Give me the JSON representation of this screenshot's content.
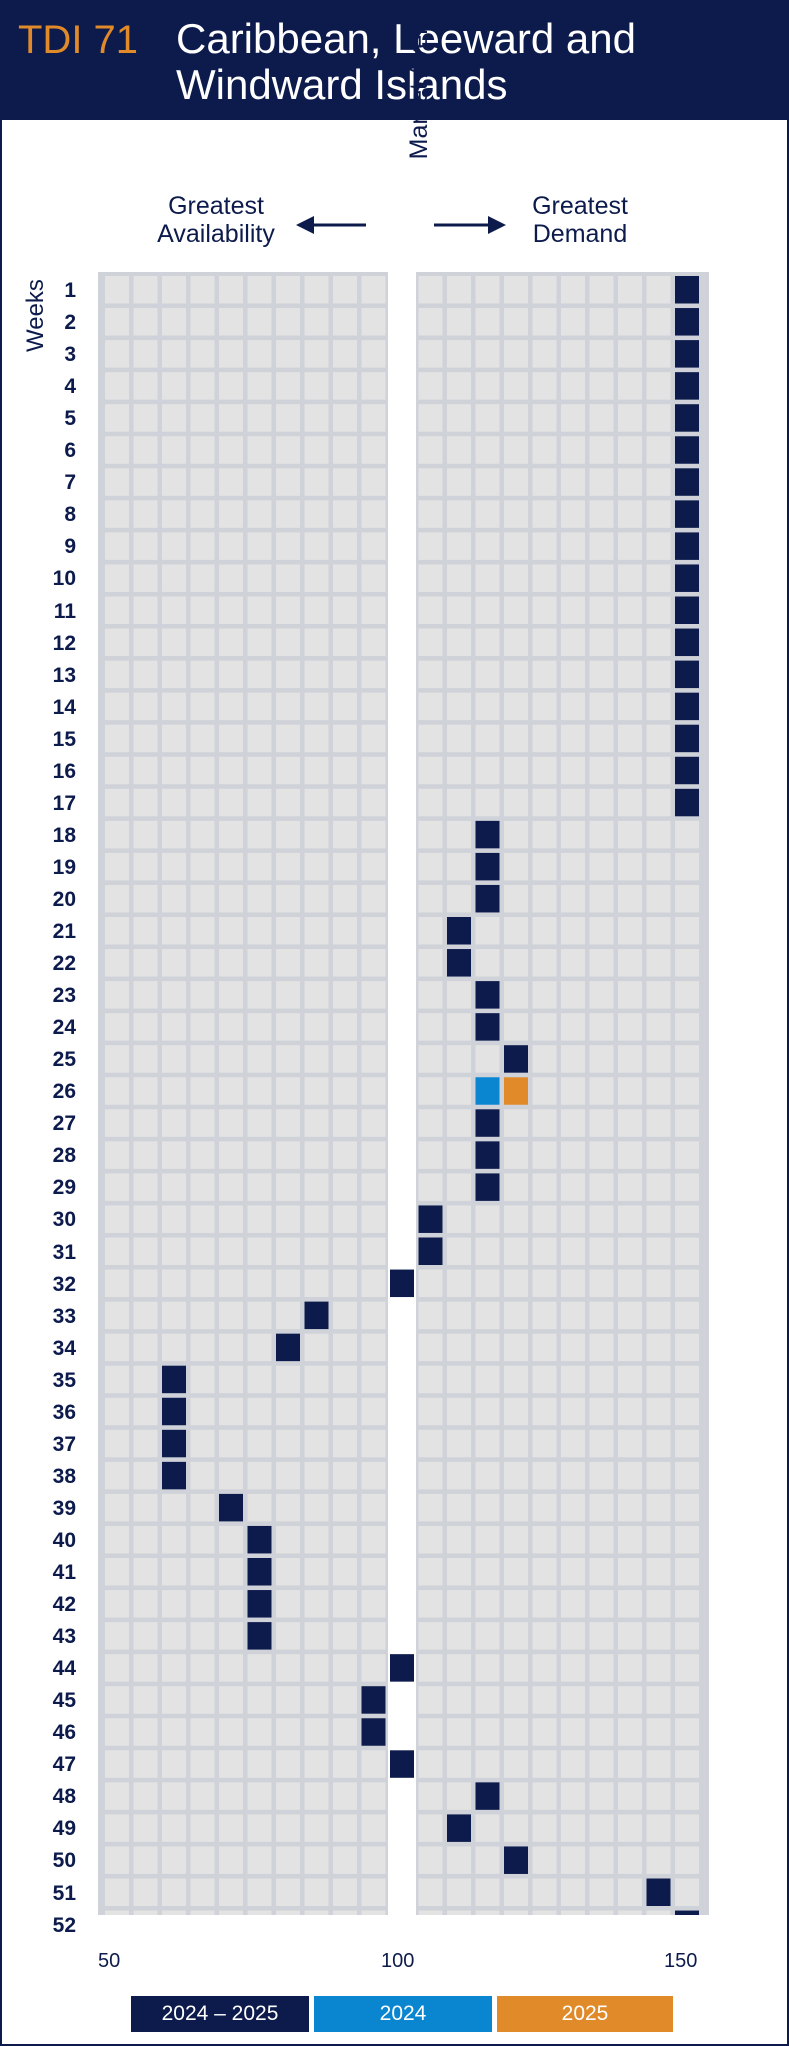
{
  "header": {
    "code": "TDI 71",
    "title": "Caribbean, Leeward and Windward Islands"
  },
  "scale": {
    "left_label": "Greatest Availability",
    "middle_label": "Market Average",
    "right_label": "Greatest Demand",
    "weeks_label": "Weeks"
  },
  "colors": {
    "navy": "#0d1b4c",
    "blue": "#0a85d0",
    "orange": "#e08a2a",
    "cell": "#e3e3e3",
    "panel": "#cfd2d8"
  },
  "chart_data": {
    "type": "heatmap",
    "x_ticks": [
      50,
      100,
      150
    ],
    "x_range": [
      50,
      150
    ],
    "y_label": "Weeks",
    "weeks": [
      1,
      2,
      3,
      4,
      5,
      6,
      7,
      8,
      9,
      10,
      11,
      12,
      13,
      14,
      15,
      16,
      17,
      18,
      19,
      20,
      21,
      22,
      23,
      24,
      25,
      26,
      27,
      28,
      29,
      30,
      31,
      32,
      33,
      34,
      35,
      36,
      37,
      38,
      39,
      40,
      41,
      42,
      43,
      44,
      45,
      46,
      47,
      48,
      49,
      50,
      51,
      52
    ],
    "series": [
      {
        "name": "2024 – 2025",
        "color": "#0d1b4c",
        "values": [
          150,
          150,
          150,
          150,
          150,
          150,
          150,
          150,
          150,
          150,
          150,
          150,
          150,
          150,
          150,
          150,
          150,
          115,
          115,
          115,
          110,
          110,
          115,
          115,
          120,
          null,
          115,
          115,
          115,
          105,
          105,
          100,
          85,
          80,
          60,
          60,
          60,
          60,
          70,
          75,
          75,
          75,
          75,
          100,
          95,
          95,
          100,
          115,
          110,
          120,
          145,
          150
        ]
      },
      {
        "name": "2024",
        "color": "#0a85d0",
        "values": [
          null,
          null,
          null,
          null,
          null,
          null,
          null,
          null,
          null,
          null,
          null,
          null,
          null,
          null,
          null,
          null,
          null,
          null,
          null,
          null,
          null,
          null,
          null,
          null,
          null,
          115,
          null,
          null,
          null,
          null,
          null,
          null,
          null,
          null,
          null,
          null,
          null,
          null,
          null,
          null,
          null,
          null,
          null,
          null,
          null,
          null,
          null,
          null,
          null,
          null,
          null,
          null
        ]
      },
      {
        "name": "2025",
        "color": "#e08a2a",
        "values": [
          null,
          null,
          null,
          null,
          null,
          null,
          null,
          null,
          null,
          null,
          null,
          null,
          null,
          null,
          null,
          null,
          null,
          null,
          null,
          null,
          null,
          null,
          null,
          null,
          null,
          120,
          null,
          null,
          null,
          null,
          null,
          null,
          null,
          null,
          null,
          null,
          null,
          null,
          null,
          null,
          null,
          null,
          null,
          null,
          null,
          null,
          null,
          null,
          null,
          null,
          null,
          null
        ]
      }
    ]
  }
}
